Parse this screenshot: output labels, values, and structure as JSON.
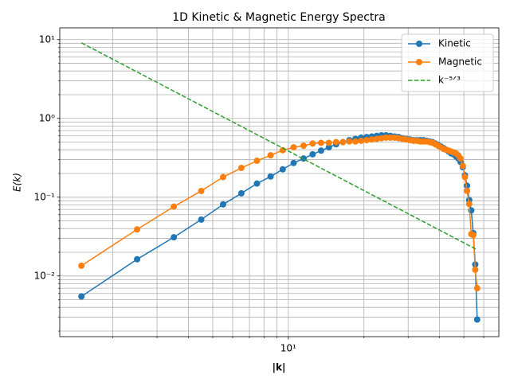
{
  "chart_data": {
    "type": "line",
    "title": "1D Kinetic & Magnetic Energy Spectra",
    "xlabel": "|k|",
    "ylabel": "E(k)",
    "log_x": true,
    "log_y": true,
    "grid": "both",
    "legend": "upper right",
    "xlim": [
      1.23,
      68.9
    ],
    "ylim": [
      0.0017,
      14.1
    ],
    "xticks": [
      {
        "value": 10,
        "label": "10¹"
      }
    ],
    "xticks_minor": [
      2,
      3,
      4,
      5,
      6,
      7,
      8,
      9,
      20,
      30,
      40,
      50,
      60
    ],
    "yticks": [
      {
        "value": 0.01,
        "label": "10⁻²"
      },
      {
        "value": 0.1,
        "label": "10⁻¹"
      },
      {
        "value": 1,
        "label": "10⁰"
      },
      {
        "value": 10,
        "label": "10¹"
      }
    ],
    "yticks_minor": [
      0.002,
      0.003,
      0.004,
      0.005,
      0.006,
      0.007,
      0.008,
      0.009,
      0.02,
      0.03,
      0.04,
      0.05,
      0.06,
      0.07,
      0.08,
      0.09,
      0.2,
      0.3,
      0.4,
      0.5,
      0.6,
      0.7,
      0.8,
      0.9,
      2,
      3,
      4,
      5,
      6,
      7,
      8,
      9
    ],
    "x": [
      1.5,
      2.5,
      3.5,
      4.5,
      5.5,
      6.5,
      7.5,
      8.5,
      9.5,
      10.5,
      11.5,
      12.5,
      13.5,
      14.5,
      15.5,
      16.5,
      17.5,
      18.5,
      19.5,
      20.5,
      21.5,
      22.5,
      23.5,
      24.5,
      25.5,
      26.5,
      27.5,
      28.5,
      29.5,
      30.5,
      31.5,
      32.5,
      33.5,
      34.5,
      35.5,
      36.5,
      37.5,
      38.5,
      39.5,
      40.5,
      41.5,
      42.5,
      43.5,
      44.5,
      45.5,
      46.5,
      47.5,
      48.5,
      49.5,
      50.5,
      51.5,
      52.5,
      53.5,
      54.5,
      55.5,
      56.5
    ],
    "series": [
      {
        "name": "Kinetic",
        "color": "#1f77b4",
        "marker": true,
        "dashed": false,
        "values": [
          0.0055,
          0.0163,
          0.031,
          0.052,
          0.081,
          0.112,
          0.149,
          0.183,
          0.226,
          0.272,
          0.31,
          0.35,
          0.39,
          0.43,
          0.47,
          0.5,
          0.53,
          0.55,
          0.57,
          0.58,
          0.59,
          0.6,
          0.61,
          0.61,
          0.6,
          0.59,
          0.58,
          0.56,
          0.55,
          0.54,
          0.53,
          0.53,
          0.53,
          0.53,
          0.52,
          0.51,
          0.5,
          0.48,
          0.46,
          0.44,
          0.42,
          0.4,
          0.38,
          0.36,
          0.35,
          0.33,
          0.31,
          0.28,
          0.24,
          0.19,
          0.14,
          0.092,
          0.068,
          0.035,
          0.014,
          0.0028
        ]
      },
      {
        "name": "Magnetic",
        "color": "#ff7f0e",
        "marker": true,
        "dashed": false,
        "values": [
          0.0135,
          0.039,
          0.076,
          0.12,
          0.18,
          0.235,
          0.29,
          0.34,
          0.395,
          0.43,
          0.45,
          0.48,
          0.49,
          0.49,
          0.5,
          0.5,
          0.51,
          0.51,
          0.52,
          0.53,
          0.54,
          0.55,
          0.56,
          0.57,
          0.57,
          0.57,
          0.56,
          0.55,
          0.54,
          0.53,
          0.52,
          0.52,
          0.51,
          0.51,
          0.51,
          0.5,
          0.49,
          0.47,
          0.45,
          0.43,
          0.41,
          0.4,
          0.39,
          0.38,
          0.37,
          0.36,
          0.34,
          0.31,
          0.25,
          0.18,
          0.12,
          0.082,
          0.034,
          0.033,
          0.012,
          0.007
        ]
      },
      {
        "name": "k⁻⁵ᐟ³",
        "color": "#2ca02c",
        "marker": false,
        "dashed": true,
        "x": [
          1.5,
          56.5
        ],
        "values": [
          9.1,
          0.0215
        ]
      }
    ]
  }
}
